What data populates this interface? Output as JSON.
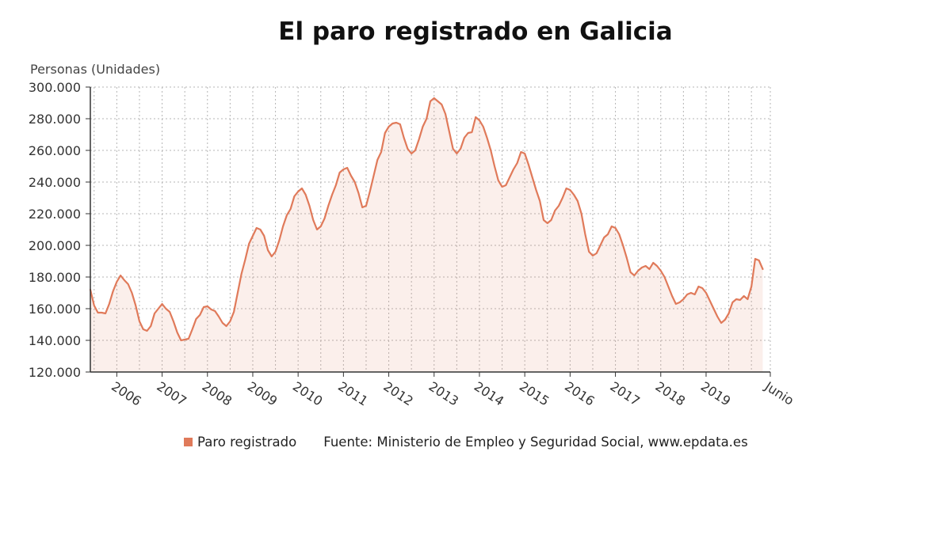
{
  "chart_data": {
    "type": "area",
    "title": "El paro registrado en Galicia",
    "ylabel": "Personas (Unidades)",
    "ylim": [
      120000,
      300000
    ],
    "y_ticks": [
      120000,
      140000,
      160000,
      180000,
      200000,
      220000,
      240000,
      260000,
      280000,
      300000
    ],
    "y_tick_labels": [
      "120.000",
      "140.000",
      "160.000",
      "180.000",
      "200.000",
      "220.000",
      "240.000",
      "260.000",
      "280.000",
      "300.000"
    ],
    "x_tick_labels": [
      "2006",
      "2007",
      "2008",
      "2009",
      "2010",
      "2011",
      "2012",
      "2013",
      "2014",
      "2015",
      "2016",
      "2017",
      "2018",
      "2019",
      "Junio"
    ],
    "grid": true,
    "legend_position": "bottom",
    "color": "#e07a5a",
    "start_month": "2005-06",
    "end_month": "2020-06",
    "series": [
      {
        "name": "Paro registrado",
        "values": [
          172000,
          162000,
          157500,
          157500,
          157000,
          163000,
          171000,
          177000,
          181000,
          178000,
          175500,
          170000,
          162000,
          152000,
          147000,
          146000,
          149000,
          157000,
          160000,
          163000,
          160000,
          158000,
          152000,
          145000,
          140000,
          140500,
          141000,
          147000,
          153500,
          156000,
          161000,
          161500,
          159500,
          158500,
          155000,
          151000,
          149000,
          152000,
          158000,
          170000,
          182000,
          191000,
          201000,
          206000,
          211000,
          210000,
          206000,
          197000,
          193000,
          196000,
          203000,
          212000,
          219000,
          223000,
          231000,
          234000,
          236000,
          232000,
          225000,
          216000,
          210000,
          212000,
          217000,
          225000,
          232000,
          238000,
          246000,
          248000,
          249000,
          244000,
          240000,
          233000,
          224000,
          225000,
          234000,
          244000,
          254000,
          259000,
          271000,
          275000,
          277000,
          277500,
          276500,
          268000,
          261000,
          258000,
          260000,
          267000,
          275000,
          280000,
          291000,
          293000,
          291000,
          289000,
          283000,
          272000,
          261000,
          258000,
          261000,
          268000,
          271000,
          271500,
          281000,
          279000,
          275000,
          268000,
          260000,
          250000,
          241000,
          237000,
          238000,
          243000,
          248000,
          252000,
          259000,
          258000,
          251000,
          243000,
          235000,
          228000,
          216000,
          214000,
          216000,
          222000,
          225000,
          230000,
          236000,
          235000,
          232000,
          228000,
          220000,
          207000,
          196000,
          193500,
          195000,
          200000,
          205000,
          207000,
          212000,
          211000,
          207000,
          200000,
          192000,
          183000,
          181000,
          184000,
          186000,
          187000,
          185000,
          189000,
          187000,
          184000,
          180000,
          174000,
          168000,
          163000,
          164000,
          166000,
          169000,
          170000,
          169000,
          174000,
          173000,
          170000,
          165000,
          160000,
          155000,
          151000,
          153000,
          157000,
          164000,
          166000,
          165500,
          168000,
          166000,
          174000,
          191500,
          190500,
          185000
        ]
      }
    ],
    "source": "Fuente: Ministerio de Empleo y Seguridad Social, www.epdata.es"
  }
}
